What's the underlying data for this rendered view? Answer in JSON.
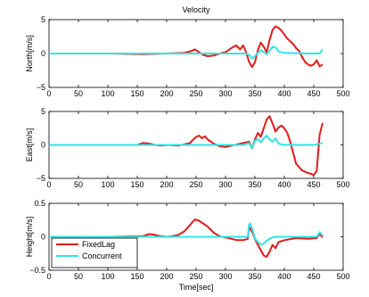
{
  "chart_data": [
    {
      "type": "line",
      "title": "Velocity",
      "xlabel": "",
      "ylabel": "North[m/s]",
      "xlim": [
        0,
        500
      ],
      "ylim": [
        -5,
        5
      ],
      "xticks": [
        "0",
        "50",
        "100",
        "150",
        "200",
        "250",
        "300",
        "350",
        "400",
        "450",
        "500"
      ],
      "yticks": [
        "5",
        "0",
        "−5"
      ],
      "series": [
        {
          "name": "FixedLag",
          "color": "#e11b1b",
          "x": [
            0,
            100,
            160,
            200,
            230,
            240,
            248,
            255,
            262,
            270,
            280,
            290,
            300,
            310,
            318,
            325,
            330,
            335,
            340,
            345,
            350,
            355,
            360,
            365,
            370,
            375,
            380,
            385,
            390,
            395,
            400,
            405,
            410,
            415,
            420,
            425,
            430,
            435,
            440,
            445,
            450,
            455,
            460,
            465
          ],
          "y": [
            0,
            0,
            -0.1,
            0,
            0.1,
            0.3,
            0.6,
            0.2,
            -0.2,
            -0.4,
            -0.3,
            0,
            0.2,
            0.8,
            1.2,
            0.6,
            1.2,
            0.2,
            -1.2,
            -2.0,
            -1.3,
            0.5,
            1.6,
            1.0,
            0.2,
            2.0,
            3.5,
            4.0,
            3.8,
            3.4,
            2.8,
            2.2,
            1.8,
            1.4,
            0.8,
            0.4,
            -0.5,
            -1.2,
            -1.6,
            -1.8,
            -1.6,
            -1.0,
            -1.9,
            -1.6
          ]
        },
        {
          "name": "Concurrent",
          "color": "#2ee6e6",
          "x": [
            0,
            160,
            200,
            300,
            335,
            340,
            345,
            350,
            355,
            360,
            365,
            370,
            375,
            380,
            385,
            390,
            400,
            440,
            455,
            460,
            465
          ],
          "y": [
            0,
            0,
            0,
            0,
            0,
            -0.2,
            -0.7,
            -0.4,
            0.1,
            0.5,
            0.2,
            -0.1,
            0.4,
            1.0,
            0.9,
            0.3,
            0.1,
            0,
            0,
            0,
            0.6
          ]
        }
      ]
    },
    {
      "type": "line",
      "title": "",
      "xlabel": "",
      "ylabel": "East[m/s]",
      "xlim": [
        0,
        500
      ],
      "ylim": [
        -5,
        5
      ],
      "xticks": [
        "0",
        "50",
        "100",
        "150",
        "200",
        "250",
        "300",
        "350",
        "400",
        "450",
        "500"
      ],
      "yticks": [
        "5",
        "0",
        "−5"
      ],
      "series": [
        {
          "name": "FixedLag",
          "color": "#e11b1b",
          "x": [
            0,
            100,
            150,
            160,
            170,
            180,
            190,
            200,
            220,
            240,
            245,
            250,
            255,
            260,
            265,
            270,
            280,
            290,
            300,
            310,
            320,
            330,
            340,
            345,
            350,
            355,
            360,
            365,
            370,
            375,
            380,
            385,
            390,
            395,
            400,
            405,
            410,
            420,
            430,
            440,
            445,
            450,
            455,
            460,
            465
          ],
          "y": [
            0,
            0,
            0,
            0.3,
            0.2,
            0,
            -0.1,
            0,
            -0.1,
            0.3,
            0.8,
            1.2,
            1.4,
            1.0,
            1.3,
            0.8,
            0.2,
            -0.2,
            -0.3,
            -0.1,
            0.1,
            0.3,
            0.5,
            -0.5,
            0.8,
            1.8,
            1.2,
            2.5,
            3.8,
            4.3,
            3.2,
            2.0,
            2.6,
            2.9,
            2.5,
            1.8,
            0.5,
            -2.8,
            -3.8,
            -4.2,
            -4.3,
            -4.5,
            -3.9,
            1.5,
            3.3
          ]
        },
        {
          "name": "Concurrent",
          "color": "#2ee6e6",
          "x": [
            0,
            160,
            200,
            300,
            330,
            340,
            345,
            350,
            355,
            360,
            365,
            370,
            375,
            380,
            385,
            390,
            400,
            450,
            465
          ],
          "y": [
            0,
            0,
            0,
            0,
            0,
            0.3,
            -0.5,
            0.6,
            0.9,
            0.4,
            1.0,
            1.4,
            0.8,
            0.5,
            1.0,
            0.2,
            0,
            0,
            0.3
          ]
        }
      ]
    },
    {
      "type": "line",
      "title": "",
      "xlabel": "Time[sec]",
      "ylabel": "Height[m/s]",
      "xlim": [
        0,
        500
      ],
      "ylim": [
        -0.5,
        0.5
      ],
      "xticks": [
        "0",
        "50",
        "100",
        "150",
        "200",
        "250",
        "300",
        "350",
        "400",
        "450",
        "500"
      ],
      "yticks": [
        "0.5",
        "0",
        "−0.5"
      ],
      "series": [
        {
          "name": "FixedLag",
          "color": "#e11b1b",
          "x": [
            0,
            100,
            160,
            170,
            180,
            190,
            200,
            210,
            220,
            230,
            240,
            248,
            255,
            262,
            270,
            280,
            290,
            300,
            310,
            320,
            330,
            338,
            340,
            342,
            346,
            350,
            355,
            360,
            365,
            370,
            375,
            380,
            385,
            390,
            400,
            420,
            440,
            455,
            460,
            465
          ],
          "y": [
            0,
            0,
            0.01,
            0.04,
            0.03,
            0.01,
            0,
            0.01,
            0.03,
            0.08,
            0.18,
            0.26,
            0.24,
            0.2,
            0.15,
            0.06,
            0.01,
            -0.01,
            -0.03,
            -0.05,
            -0.05,
            -0.03,
            0.15,
            0.12,
            0.06,
            -0.03,
            -0.12,
            -0.2,
            -0.28,
            -0.3,
            -0.22,
            -0.12,
            -0.17,
            -0.08,
            -0.05,
            -0.02,
            -0.03,
            -0.02,
            0.05,
            -0.01
          ]
        },
        {
          "name": "Concurrent",
          "color": "#2ee6e6",
          "x": [
            0,
            160,
            200,
            300,
            338,
            340,
            342,
            346,
            350,
            355,
            360,
            365,
            370,
            375,
            380,
            385,
            390,
            400,
            440,
            455,
            460,
            465
          ],
          "y": [
            0,
            0,
            0,
            0,
            0,
            0.18,
            0.2,
            0.1,
            -0.02,
            -0.08,
            -0.12,
            -0.1,
            -0.06,
            -0.03,
            -0.01,
            0,
            0,
            0,
            0,
            0,
            0.07,
            0.02
          ]
        }
      ],
      "legend": "bottom-left"
    }
  ]
}
